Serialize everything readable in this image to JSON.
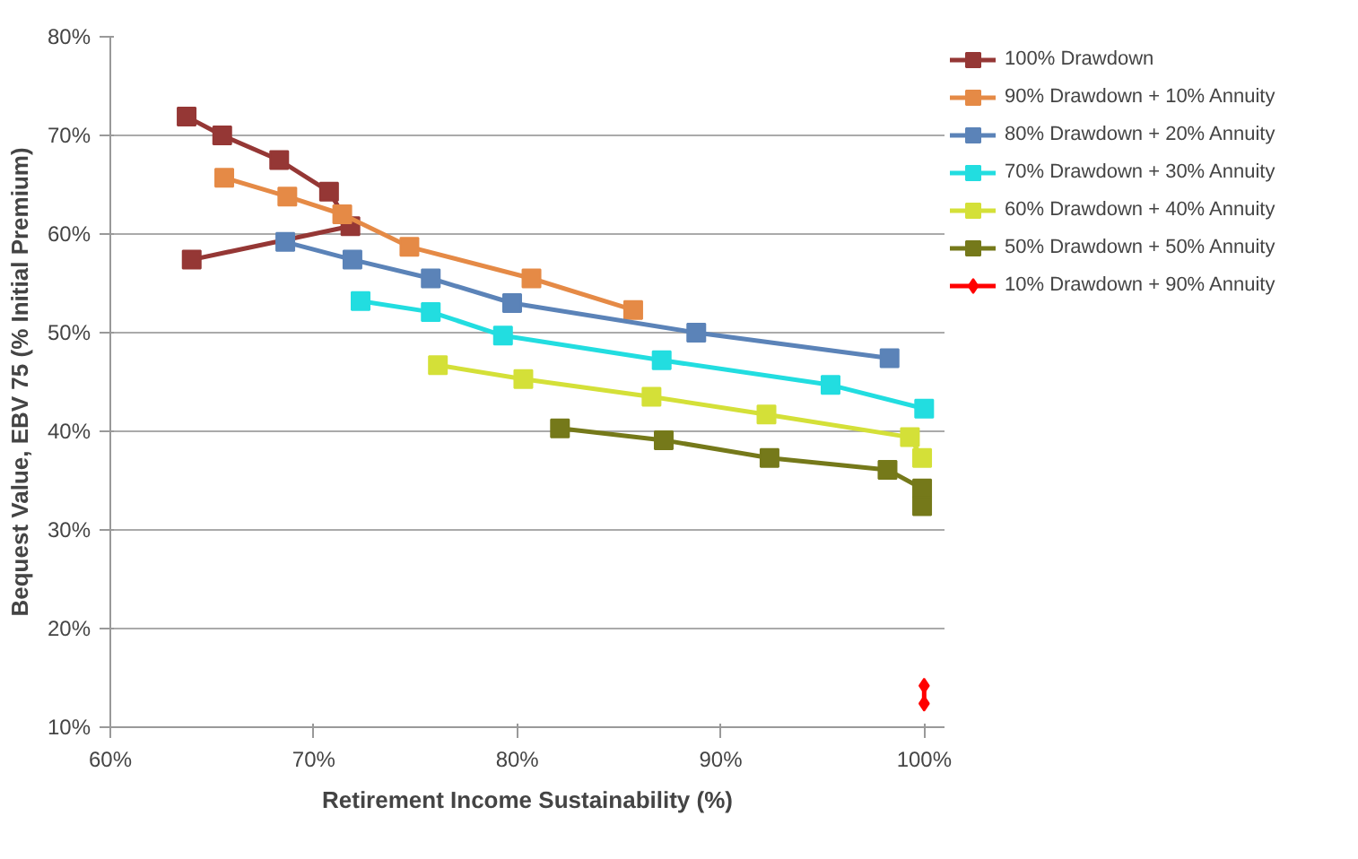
{
  "chart_data": {
    "type": "line",
    "xlabel": "Retirement Income Sustainability (%)",
    "ylabel": "Bequest Value, EBV 75 (% Initial Premium)",
    "xlim": [
      60,
      101
    ],
    "ylim": [
      10,
      80
    ],
    "xticks": [
      {
        "value": 60,
        "label": "60%"
      },
      {
        "value": 70,
        "label": "70%"
      },
      {
        "value": 80,
        "label": "80%"
      },
      {
        "value": 90,
        "label": "90%"
      },
      {
        "value": 100,
        "label": "100%"
      }
    ],
    "yticks": [
      {
        "value": 10,
        "label": "10%"
      },
      {
        "value": 20,
        "label": "20%"
      },
      {
        "value": 30,
        "label": "30%"
      },
      {
        "value": 40,
        "label": "40%"
      },
      {
        "value": 50,
        "label": "50%"
      },
      {
        "value": 60,
        "label": "60%"
      },
      {
        "value": 70,
        "label": "70%"
      },
      {
        "value": 80,
        "label": "80%"
      }
    ],
    "grid": "y",
    "legend": "right",
    "marker": "square",
    "line_style": "solid",
    "series": [
      {
        "name": "100% Drawdown",
        "color": "#953735",
        "x": [
          63.75,
          65.5,
          68.3,
          70.75,
          71.8,
          64.0
        ],
        "values": [
          71.9,
          70.0,
          67.5,
          64.3,
          60.8,
          57.4
        ]
      },
      {
        "name": "90% Drawdown + 10% Annuity",
        "color": "#e58a46",
        "x": [
          65.6,
          68.7,
          71.4,
          74.7,
          80.7,
          85.7
        ],
        "values": [
          65.7,
          63.8,
          62.0,
          58.7,
          55.5,
          52.3
        ]
      },
      {
        "name": "80% Drawdown + 20% Annuity",
        "color": "#5b83b8",
        "x": [
          68.6,
          71.9,
          75.75,
          79.75,
          88.8,
          98.3
        ],
        "values": [
          59.2,
          57.4,
          55.5,
          53.0,
          50.0,
          47.4
        ]
      },
      {
        "name": "70% Drawdown + 30% Annuity",
        "color": "#22dde0",
        "x": [
          72.3,
          75.75,
          79.3,
          87.1,
          95.4,
          100
        ],
        "values": [
          53.2,
          52.1,
          49.7,
          47.2,
          44.7,
          42.3
        ]
      },
      {
        "name": "60% Drawdown + 40% Annuity",
        "color": "#d4e038",
        "x": [
          76.1,
          80.3,
          86.6,
          92.25,
          99.3,
          99.9
        ],
        "values": [
          46.7,
          45.3,
          43.5,
          41.7,
          39.4,
          37.3
        ]
      },
      {
        "name": "50% Drawdown + 50% Annuity",
        "color": "#75791a",
        "x": [
          82.1,
          87.2,
          92.4,
          98.2,
          99.9,
          99.9
        ],
        "values": [
          40.3,
          39.1,
          37.3,
          36.1,
          34.2,
          32.4
        ]
      },
      {
        "name": "10% Drawdown + 90% Annuity",
        "color": "#ff0000",
        "marker": "diamond",
        "x": [
          100,
          100
        ],
        "values": [
          14.2,
          12.4
        ]
      }
    ]
  }
}
